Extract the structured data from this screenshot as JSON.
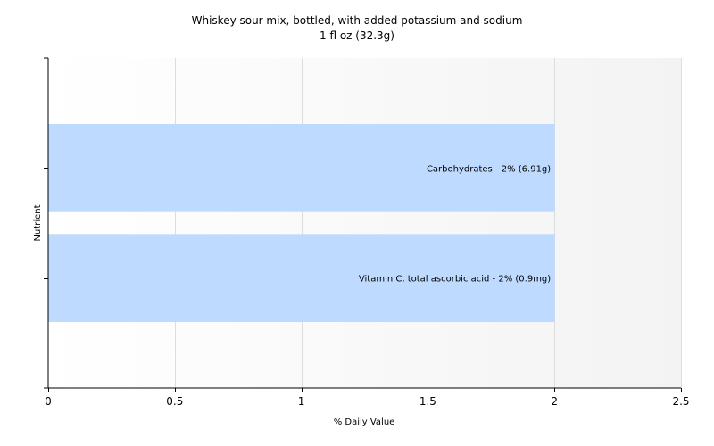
{
  "chart_data": {
    "type": "bar",
    "orientation": "horizontal",
    "title": "Whiskey sour mix, bottled, with added potassium and sodium",
    "subtitle": "1 fl oz (32.3g)",
    "xlabel": "% Daily Value",
    "ylabel": "Nutrient",
    "xlim": [
      0,
      2.5
    ],
    "x_ticks": [
      "0",
      "0.5",
      "1",
      "1.5",
      "2",
      "2.5"
    ],
    "x_tick_values": [
      0,
      0.5,
      1,
      1.5,
      2,
      2.5
    ],
    "categories": [
      "Carbohydrates",
      "Vitamin C, total ascorbic acid"
    ],
    "values": [
      2,
      2
    ],
    "bar_labels": [
      "Carbohydrates - 2% (6.91g)",
      "Vitamin C, total ascorbic acid - 2% (0.9mg)"
    ],
    "grid": true,
    "legend": "none",
    "colors": {
      "bar": "#bfdaff",
      "band_light": "#ffffff",
      "band_dark": "#f3f3f3",
      "grid": "#dddddd",
      "axis": "#000000"
    }
  }
}
